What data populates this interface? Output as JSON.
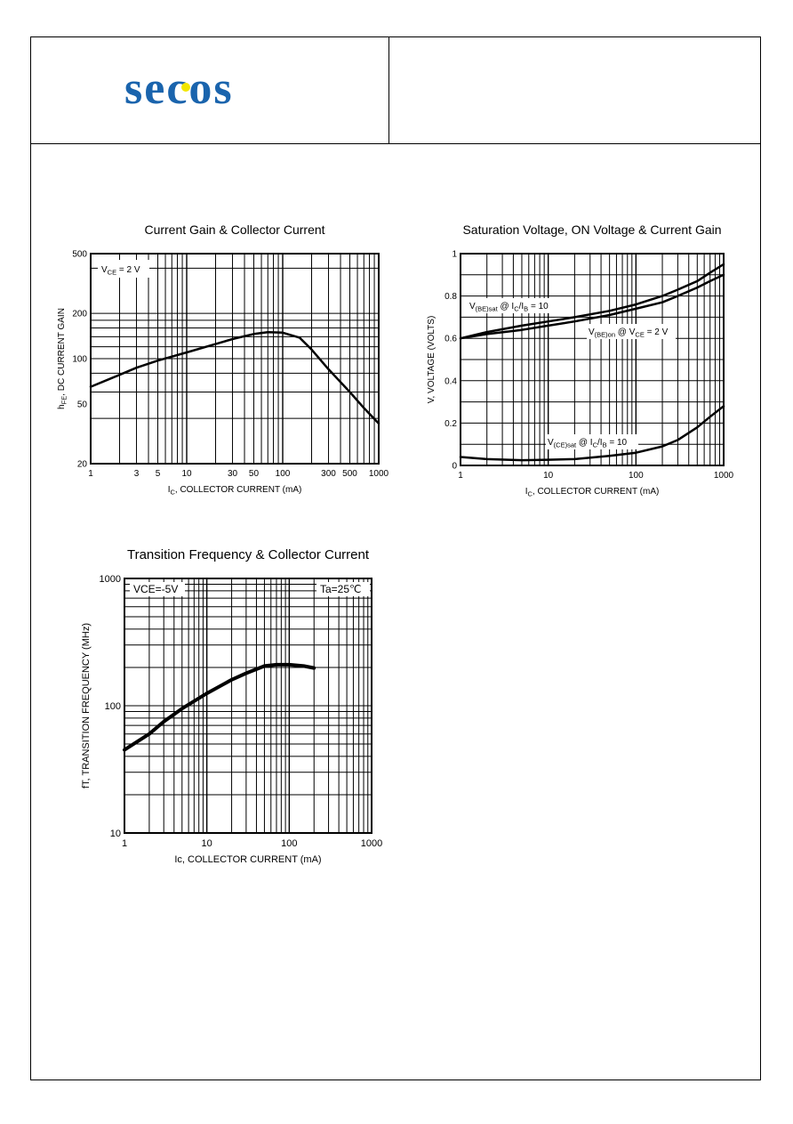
{
  "logo": {
    "text": "SECOS",
    "color": "#1a64ad",
    "accent": "#f2e600"
  },
  "charts": [
    {
      "id": "gain",
      "title": "Current Gain & Collector Current",
      "annotation": "V_CE = 2 V",
      "xlabel": "I_C, COLLECTOR CURRENT (mA)",
      "ylabel": "h_FE, DC CURRENT GAIN"
    },
    {
      "id": "sat",
      "title": "Saturation Voltage, ON Voltage &  Current Gain",
      "annotations": [
        "V_(BE)sat @ I_C/I_B = 10",
        "V_(BE)on @ V_CE = 2 V",
        "V_(CE)sat @ I_C/I_B = 10"
      ],
      "xlabel": "I_C, COLLECTOR CURRENT (mA)",
      "ylabel": "V, VOLTAGE (VOLTS)"
    },
    {
      "id": "ft",
      "title": "Transition Frequency & Collector Current",
      "annotations": [
        "VCE=-5V",
        "Ta=25℃"
      ],
      "xlabel": "Ic, COLLECTOR CURRENT (mA)",
      "ylabel": "fT, TRANSITION FREQUENCY (MHz)"
    }
  ],
  "chart_data": [
    {
      "type": "line",
      "title": "Current Gain & Collector Current",
      "xlabel": "I_C, COLLECTOR CURRENT (mA)",
      "ylabel": "h_FE, DC CURRENT GAIN",
      "xscale": "log",
      "yscale": "log",
      "xlim": [
        1,
        1000
      ],
      "ylim": [
        20,
        500
      ],
      "grid": true,
      "xticks": [
        "1",
        "3",
        "5",
        "10",
        "30",
        "50",
        "100",
        "300",
        "500",
        "1000"
      ],
      "yticks": [
        "20",
        "50",
        "100",
        "200",
        "500"
      ],
      "annotation": "V_CE = 2 V",
      "series": [
        {
          "x": [
            1,
            2,
            3,
            5,
            10,
            20,
            30,
            50,
            70,
            100,
            150,
            200,
            300,
            500,
            700,
            1000
          ],
          "y": [
            65,
            78,
            87,
            97,
            110,
            125,
            135,
            146,
            150,
            149,
            138,
            115,
            85,
            60,
            47,
            37
          ]
        }
      ]
    },
    {
      "type": "line",
      "title": "Saturation Voltage, ON Voltage &  Current Gain",
      "xlabel": "I_C, COLLECTOR CURRENT (mA)",
      "ylabel": "V, VOLTAGE (VOLTS)",
      "xscale": "log",
      "yscale": "linear",
      "xlim": [
        1,
        1000
      ],
      "ylim": [
        0,
        1
      ],
      "grid": true,
      "xticks": [
        "1",
        "10",
        "100",
        "1000"
      ],
      "yticks": [
        "0",
        "0.2",
        "0.4",
        "0.6",
        "0.8",
        "1"
      ],
      "series": [
        {
          "name": "V_(BE)sat @ I_C/I_B = 10",
          "x": [
            1,
            2,
            5,
            10,
            20,
            50,
            100,
            200,
            300,
            500,
            700,
            1000
          ],
          "y": [
            0.6,
            0.63,
            0.66,
            0.68,
            0.7,
            0.73,
            0.76,
            0.8,
            0.83,
            0.87,
            0.91,
            0.95
          ]
        },
        {
          "name": "V_(BE)on @ V_CE = 2 V",
          "x": [
            1,
            2,
            5,
            10,
            20,
            50,
            100,
            200,
            300,
            500,
            700,
            1000
          ],
          "y": [
            0.6,
            0.62,
            0.64,
            0.66,
            0.68,
            0.71,
            0.74,
            0.77,
            0.8,
            0.84,
            0.87,
            0.9
          ]
        },
        {
          "name": "V_(CE)sat @ I_C/I_B = 10",
          "x": [
            1,
            2,
            5,
            10,
            20,
            50,
            100,
            200,
            300,
            500,
            700,
            1000
          ],
          "y": [
            0.04,
            0.03,
            0.025,
            0.027,
            0.03,
            0.045,
            0.06,
            0.09,
            0.12,
            0.18,
            0.23,
            0.28
          ]
        }
      ]
    },
    {
      "type": "line",
      "title": "Transition Frequency & Collector Current",
      "xlabel": "Ic, COLLECTOR CURRENT (mA)",
      "ylabel": "fT, TRANSITION FREQUENCY (MHz)",
      "xscale": "log",
      "yscale": "log",
      "xlim": [
        1,
        1000
      ],
      "ylim": [
        10,
        1000
      ],
      "grid": true,
      "xticks": [
        "1",
        "10",
        "100",
        "1000"
      ],
      "yticks": [
        "10",
        "100",
        "1000"
      ],
      "annotations": [
        "VCE=-5V",
        "Ta=25℃"
      ],
      "series": [
        {
          "x": [
            1,
            2,
            3,
            5,
            10,
            20,
            30,
            50,
            70,
            100,
            150,
            200
          ],
          "y": [
            45,
            60,
            75,
            95,
            125,
            160,
            180,
            205,
            210,
            210,
            205,
            198
          ]
        }
      ]
    }
  ]
}
